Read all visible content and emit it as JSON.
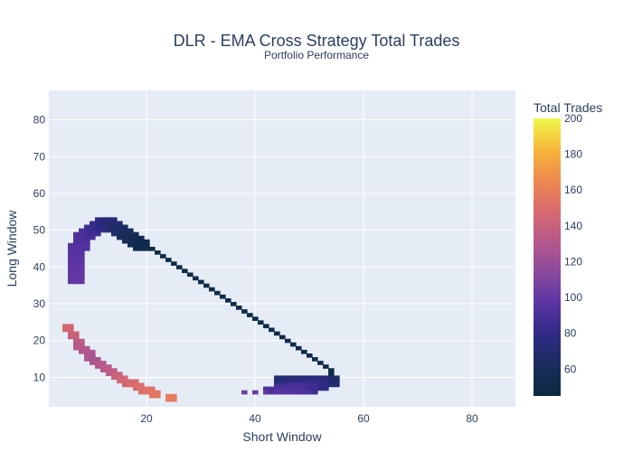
{
  "chart_data": {
    "type": "heatmap",
    "title": "DLR - EMA Cross Strategy Total Trades",
    "subtitle": "Portfolio Performance",
    "xlabel": "Short Window",
    "ylabel": "Long Window",
    "xlim": [
      2,
      88
    ],
    "ylim": [
      2,
      88
    ],
    "x_ticks": [
      20,
      40,
      60,
      80
    ],
    "y_ticks": [
      10,
      20,
      30,
      40,
      50,
      60,
      70,
      80
    ],
    "grid": true,
    "colorbar": {
      "title": "Total Trades",
      "range": [
        45,
        200
      ],
      "ticks": [
        60,
        80,
        100,
        120,
        140,
        160,
        180,
        200
      ],
      "colorscale": [
        "#0d0887",
        "#46039f",
        "#7201a8",
        "#9c179e",
        "#bd3786",
        "#d8576b",
        "#ed7953",
        "#fb9f3a",
        "#fdca26",
        "#f0f921"
      ],
      "colorscale_display": [
        "#0a2a3f",
        "#1b2d5e",
        "#2f2a86",
        "#5b34a3",
        "#8a4a9e",
        "#b5588a",
        "#d96a6e",
        "#ee8a4e",
        "#f7b63a",
        "#f0f94a"
      ]
    },
    "regions": [
      {
        "name": "upper-arc",
        "points": [
          [
            6,
            38
          ],
          [
            6,
            40
          ],
          [
            6,
            42
          ],
          [
            6,
            44
          ],
          [
            6,
            46
          ],
          [
            7,
            47
          ],
          [
            7,
            49
          ],
          [
            8,
            50
          ],
          [
            9,
            51
          ],
          [
            10,
            52
          ],
          [
            11,
            53
          ],
          [
            12,
            53
          ],
          [
            13,
            52
          ],
          [
            14,
            51
          ],
          [
            15,
            50
          ],
          [
            16,
            49
          ],
          [
            17,
            48
          ],
          [
            18,
            47
          ]
        ],
        "values": [
          100,
          100,
          98,
          96,
          95,
          94,
          92,
          90,
          86,
          82,
          78,
          74,
          70,
          66,
          62,
          58,
          55,
          52
        ],
        "thickness": 3
      },
      {
        "name": "diagonal-band",
        "points": [
          [
            19,
            47
          ],
          [
            20,
            46
          ],
          [
            21,
            45
          ],
          [
            22,
            44
          ],
          [
            23,
            43
          ],
          [
            24,
            42
          ],
          [
            25,
            41
          ],
          [
            26,
            40
          ],
          [
            27,
            39
          ],
          [
            28,
            38
          ],
          [
            29,
            37
          ],
          [
            30,
            36
          ],
          [
            31,
            35
          ],
          [
            32,
            34
          ],
          [
            33,
            33
          ],
          [
            34,
            32
          ],
          [
            35,
            31
          ],
          [
            36,
            30
          ],
          [
            37,
            29
          ],
          [
            38,
            28
          ],
          [
            39,
            27
          ],
          [
            40,
            26
          ],
          [
            41,
            25
          ],
          [
            42,
            24
          ],
          [
            43,
            23
          ],
          [
            44,
            22
          ],
          [
            45,
            21
          ],
          [
            46,
            20
          ],
          [
            47,
            19
          ],
          [
            48,
            18
          ],
          [
            49,
            17
          ],
          [
            50,
            16
          ],
          [
            51,
            15
          ],
          [
            52,
            14
          ],
          [
            53,
            13
          ],
          [
            54,
            12
          ],
          [
            54,
            11
          ],
          [
            54,
            10
          ]
        ],
        "values": [
          50,
          50,
          50,
          50,
          50,
          50,
          50,
          50,
          50,
          50,
          50,
          50,
          50,
          50,
          50,
          50,
          50,
          50,
          50,
          50,
          50,
          50,
          50,
          50,
          50,
          50,
          50,
          50,
          50,
          50,
          50,
          50,
          50,
          50,
          50,
          50,
          50,
          50
        ],
        "thickness": 1
      },
      {
        "name": "lower-right-blob",
        "points": [
          [
            44,
            10
          ],
          [
            46,
            10
          ],
          [
            48,
            10
          ],
          [
            50,
            10
          ],
          [
            52,
            10
          ],
          [
            54,
            10
          ],
          [
            46,
            9
          ],
          [
            48,
            9
          ],
          [
            50,
            9
          ],
          [
            52,
            9
          ],
          [
            54,
            9
          ],
          [
            44,
            8
          ],
          [
            46,
            8
          ],
          [
            48,
            8
          ],
          [
            50,
            8
          ],
          [
            52,
            8
          ],
          [
            42,
            7
          ],
          [
            44,
            7
          ],
          [
            46,
            7
          ],
          [
            48,
            7
          ],
          [
            50,
            7
          ]
        ],
        "values": [
          70,
          72,
          74,
          74,
          72,
          65,
          78,
          80,
          82,
          80,
          70,
          86,
          88,
          88,
          86,
          80,
          90,
          92,
          92,
          90,
          85
        ],
        "thickness": 2
      },
      {
        "name": "bottom-strip",
        "points": [
          [
            38,
            6
          ],
          [
            40,
            6
          ],
          [
            42,
            6
          ],
          [
            44,
            6
          ],
          [
            46,
            6
          ],
          [
            48,
            6
          ],
          [
            50,
            6
          ]
        ],
        "values": [
          104,
          102,
          100,
          98,
          96,
          94,
          92
        ],
        "thickness": 1
      },
      {
        "name": "lower-diagonal",
        "points": [
          [
            5,
            24
          ],
          [
            6,
            22
          ],
          [
            7,
            20
          ],
          [
            7,
            19
          ],
          [
            8,
            18
          ],
          [
            9,
            17
          ],
          [
            9,
            16
          ],
          [
            10,
            15
          ],
          [
            11,
            14
          ],
          [
            12,
            13
          ],
          [
            13,
            12
          ],
          [
            14,
            11
          ],
          [
            15,
            10
          ],
          [
            16,
            9
          ],
          [
            17,
            9
          ],
          [
            18,
            8
          ],
          [
            19,
            7
          ],
          [
            20,
            7
          ],
          [
            21,
            6
          ],
          [
            24,
            5
          ]
        ],
        "values": [
          145,
          140,
          135,
          132,
          130,
          128,
          128,
          125,
          130,
          133,
          135,
          140,
          145,
          145,
          148,
          150,
          150,
          152,
          155,
          158
        ],
        "thickness": 2
      }
    ]
  }
}
